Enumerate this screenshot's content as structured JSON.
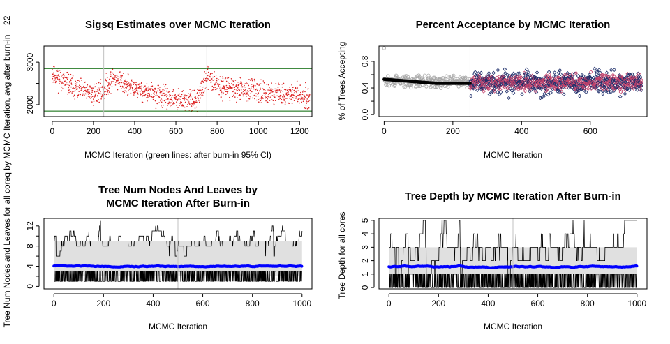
{
  "figure": {
    "side_label": "Tree Num Nodes and Leaves for all coreq by MCMC Iteration, avg after burn-in = 22"
  },
  "chart_data": [
    {
      "type": "scatter",
      "title": "Sigsq Estimates over MCMC Iteration",
      "xlabel": "MCMC Iteration (green lines: after burn-in 95% CI)",
      "ylabel": "",
      "xlim": [
        -40,
        1260
      ],
      "ylim": [
        1720,
        3380
      ],
      "xticks": [
        0,
        200,
        400,
        600,
        800,
        1000,
        1200
      ],
      "yticks": [
        2000,
        2500,
        3000
      ],
      "ytick_labels": [
        "2000",
        "",
        "3000"
      ],
      "n_points": 1250,
      "trend": [
        [
          0,
          2750
        ],
        [
          100,
          2400
        ],
        [
          200,
          2250
        ],
        [
          250,
          2350
        ],
        [
          300,
          2650
        ],
        [
          380,
          2400
        ],
        [
          500,
          2250
        ],
        [
          600,
          2100
        ],
        [
          700,
          2100
        ],
        [
          760,
          2700
        ],
        [
          800,
          2450
        ],
        [
          1000,
          2300
        ],
        [
          1250,
          2200
        ]
      ],
      "spread": 240,
      "reference_lines": {
        "hline_mean": 2320,
        "hline_ci_low": 1850,
        "hline_ci_high": 2850,
        "vlines": [
          250,
          750
        ]
      },
      "colors": {
        "points": "#dd2222",
        "mean": "#0000cc",
        "ci": "#006400",
        "vline": "#c0c0c0"
      }
    },
    {
      "type": "scatter",
      "title": "Percent Acceptance by MCMC Iteration",
      "xlabel": "MCMC Iteration",
      "ylabel": "% of Trees Accepting",
      "xlim": [
        -15,
        765
      ],
      "ylim": [
        -0.03,
        1.03
      ],
      "xticks": [
        0,
        200,
        400,
        600
      ],
      "yticks": [
        0.0,
        0.2,
        0.4,
        0.6,
        0.8
      ],
      "ytick_labels": [
        "0.0",
        "",
        "0.4",
        "",
        "0.8"
      ],
      "burn_in": 250,
      "outlier": [
        0,
        1.0
      ],
      "burnin_points": {
        "n": 250,
        "center": 0.5,
        "spread": 0.08,
        "color": "#a8a8a8"
      },
      "post_points": {
        "n": 500,
        "center": 0.48,
        "spread": 0.16,
        "colors": [
          "#1f2f6b",
          "#c0406a"
        ]
      },
      "running_mean": [
        [
          0,
          0.53
        ],
        [
          50,
          0.51
        ],
        [
          100,
          0.49
        ],
        [
          150,
          0.47
        ],
        [
          200,
          0.47
        ],
        [
          250,
          0.47
        ],
        [
          350,
          0.48
        ],
        [
          500,
          0.48
        ],
        [
          750,
          0.48
        ]
      ],
      "colors": {
        "running_mean": "#000000",
        "vline": "#c0c0c0"
      }
    },
    {
      "type": "line",
      "title_lines": [
        "Tree Num Nodes And Leaves by",
        "MCMC Iteration After Burn-in"
      ],
      "xlabel": "MCMC Iteration",
      "ylabel": "",
      "xlim": [
        -40,
        1040
      ],
      "ylim": [
        -0.5,
        13.5
      ],
      "xticks": [
        0,
        200,
        400,
        600,
        800,
        1000
      ],
      "yticks": [
        0,
        2,
        4,
        6,
        8,
        10,
        12
      ],
      "ytick_labels": [
        "0",
        "",
        "4",
        "",
        "8",
        "",
        "12"
      ],
      "band": {
        "low": 2,
        "high": 9,
        "color": "#e0e0e0"
      },
      "lower_trace": {
        "low": 1,
        "high": 3
      },
      "upper_trace": {
        "base": 9,
        "max": 13
      },
      "mean_line": {
        "value": 4.0,
        "spread": 0.3,
        "color": "#0000ff"
      },
      "vline": 500
    },
    {
      "type": "line",
      "title": "Tree Depth by MCMC Iteration After Burn-in",
      "xlabel": "MCMC Iteration",
      "ylabel": "Tree Depth for all cores",
      "xlim": [
        -40,
        1040
      ],
      "ylim": [
        -0.1,
        5.15
      ],
      "xticks": [
        0,
        200,
        400,
        600,
        800,
        1000
      ],
      "yticks": [
        0,
        1,
        2,
        3,
        4,
        5
      ],
      "band": {
        "low": 1,
        "high": 3,
        "color": "#e0e0e0"
      },
      "lower_trace": {
        "low": 0,
        "high": 1
      },
      "upper_trace": {
        "base": 3,
        "max": 5
      },
      "mean_line": {
        "value": 1.55,
        "spread": 0.12,
        "color": "#0000ff"
      },
      "vline": 500
    }
  ]
}
